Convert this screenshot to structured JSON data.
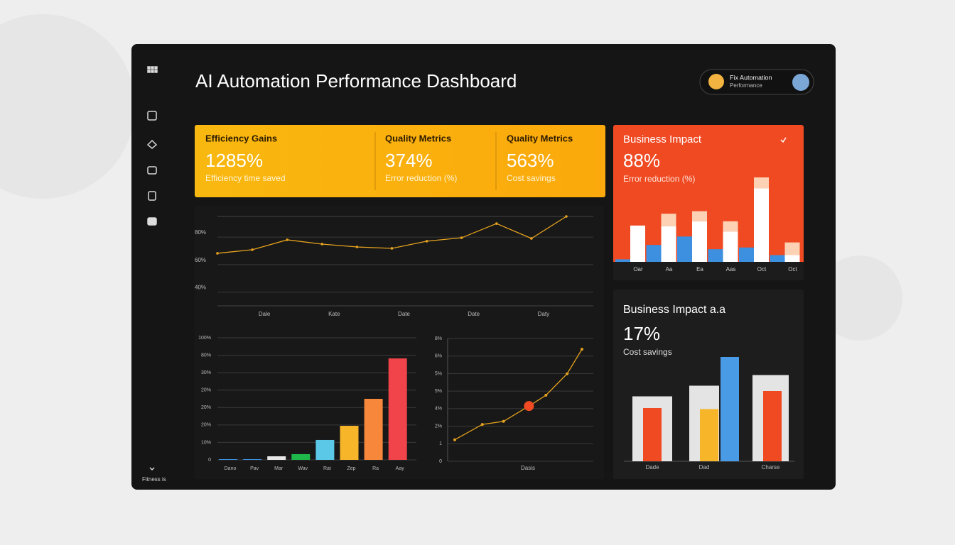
{
  "header": {
    "title": "AI Automation Performance Dashboard",
    "user": {
      "name": "Fix Automation",
      "role": "Performance"
    }
  },
  "sidebar": {
    "footer": "Fitness is"
  },
  "kpis": [
    {
      "title": "Efficiency Gains",
      "value": "1285%",
      "caption": "Efficiency time saved"
    },
    {
      "title": "Quality Metrics",
      "value": "374%",
      "caption": "Error reduction (%)"
    },
    {
      "title": "Quality Metrics",
      "value": "563%",
      "caption": "Cost savings"
    }
  ],
  "impact": {
    "title": "Business Impact",
    "value": "88%",
    "caption": "Error reduction (%)",
    "chart": {
      "type": "bar",
      "categories": [
        "Oar",
        "Aa",
        "Ea",
        "Aas",
        "Oct",
        "Oct"
      ],
      "ylim": [
        0,
        100
      ],
      "series": [
        {
          "color": "#3d8fe0",
          "position": "left",
          "values": [
            3,
            20,
            30,
            15,
            17,
            8
          ]
        },
        {
          "color": "#ffffff",
          "position": "right",
          "values": [
            43,
            42,
            48,
            36,
            87,
            8
          ]
        },
        {
          "color": "#fdd2b4",
          "position": "right",
          "values": [
            0,
            15,
            12,
            12,
            13,
            15
          ]
        }
      ]
    }
  },
  "trend": {
    "type": "line",
    "color": "#e6a21e",
    "categories": [
      null,
      "Dale",
      null,
      "Kate",
      null,
      "Date",
      null,
      "Date",
      null,
      "Daty",
      null
    ],
    "values": [
      68.2,
      70.8,
      78.0,
      74.9,
      72.8,
      71.8,
      77.0,
      79.5,
      89.8,
      79.0,
      95
    ],
    "ylim": [
      30,
      95
    ],
    "yticks": [
      {
        "value": 40,
        "label": "40%"
      },
      {
        "value": 60,
        "label": "60%"
      },
      {
        "value": 80,
        "label": "80%"
      }
    ]
  },
  "volume": {
    "type": "bar",
    "categories": [
      "Dano",
      "Pav",
      "Mar",
      "Wav",
      "Rat",
      "Zep",
      "Ra",
      "Aay"
    ],
    "values": [
      0.6,
      0.6,
      2.9,
      4.7,
      16.3,
      27.9,
      50,
      83.1
    ],
    "colors": [
      "#3d8fe0",
      "#3d8fe0",
      "#e8e8e8",
      "#1fb84a",
      "#5bc8e8",
      "#f7b52a",
      "#f7873a",
      "#f0444a"
    ],
    "ylim": [
      0,
      100
    ],
    "y_labels": [
      "0",
      "10%",
      "20%",
      "20%",
      "20%",
      "30%",
      "80%",
      "100%"
    ]
  },
  "growth": {
    "type": "line",
    "color": "#e6a21e",
    "highlight": 3,
    "highlight_color": "#f04a23",
    "x": [
      0,
      1.3,
      2.3,
      3.5,
      4.3,
      5.3,
      6
    ],
    "values": [
      1.4,
      2.4,
      2.6,
      3.6,
      4.3,
      5.7,
      7.3
    ],
    "xlim": [
      0,
      6
    ],
    "ylim": [
      0,
      8
    ],
    "xlabel": "Dasis",
    "y_labels": [
      "0",
      "1",
      "2%",
      "4%",
      "5%",
      "5%",
      "6%",
      "8%"
    ]
  },
  "impact2": {
    "title": "Business Impact a.a",
    "value": "17%",
    "caption": "Cost savings",
    "chart": {
      "type": "bar",
      "ylim": [
        0,
        100
      ],
      "back_color": "#e4e4e4",
      "groups": [
        {
          "category": "Dade",
          "back": 61,
          "bars": [
            {
              "color": "#f04a23",
              "value": 50
            }
          ]
        },
        {
          "category": "Dad",
          "back": 71,
          "bars": [
            {
              "color": "#f7b52a",
              "value": 49
            },
            {
              "color": "#4a9be6",
              "value": 98
            }
          ]
        },
        {
          "category": "Charse",
          "back": 81,
          "bars": [
            {
              "color": "#f04a23",
              "value": 66
            }
          ]
        }
      ]
    }
  }
}
